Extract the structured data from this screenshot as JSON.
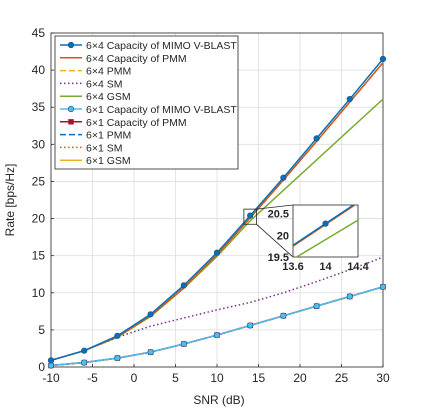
{
  "chart_data": {
    "type": "line",
    "title": "",
    "xlabel": "SNR (dB)",
    "ylabel": "Rate [bps/Hz]",
    "xlim": [
      -10,
      30
    ],
    "ylim": [
      0,
      45
    ],
    "xticks": [
      "-10",
      "-5",
      "0",
      "5",
      "10",
      "15",
      "20",
      "25",
      "30"
    ],
    "yticks": [
      "0",
      "5",
      "10",
      "15",
      "20",
      "25",
      "30",
      "35",
      "40",
      "45"
    ],
    "grid": true,
    "legend_position": "top-left",
    "x": [
      -10,
      -6,
      -2,
      2,
      6,
      10,
      14,
      18,
      22,
      26,
      30
    ],
    "series": [
      {
        "name": "6×4 Capacity of MIMO V-BLAST",
        "color": "#0072BD",
        "dash": "solid",
        "marker": "circle",
        "values": [
          0.9,
          2.2,
          4.2,
          7.1,
          11.0,
          15.4,
          20.4,
          25.5,
          30.8,
          36.1,
          41.5
        ]
      },
      {
        "name": "6×4 Capacity of PMM",
        "color": "#D95319",
        "dash": "solid",
        "marker": "none",
        "values": [
          0.9,
          2.2,
          4.1,
          6.9,
          10.7,
          15.1,
          20.1,
          25.2,
          30.4,
          35.7,
          41.0
        ]
      },
      {
        "name": "6×4 PMM",
        "color": "#EDB120",
        "dash": "dashed",
        "marker": "none",
        "values": [
          0.9,
          2.2,
          4.1,
          6.9,
          10.7,
          15.1,
          20.1,
          25.2,
          30.4,
          35.7,
          41.0
        ]
      },
      {
        "name": "6×4 SM",
        "color": "#7E2F8E",
        "dash": "dotted",
        "marker": "none",
        "values": [
          0.9,
          2.2,
          4.0,
          5.5,
          6.6,
          7.7,
          8.7,
          10.0,
          11.5,
          13.1,
          14.8
        ]
      },
      {
        "name": "6×4 GSM",
        "color": "#77AC30",
        "dash": "solid",
        "marker": "none",
        "values": [
          0.9,
          2.2,
          4.0,
          6.8,
          10.6,
          14.9,
          19.7,
          23.8,
          27.9,
          32.0,
          36.1
        ]
      },
      {
        "name": "6×1 Capacity of MIMO V-BLAST",
        "color": "#4DBEEE",
        "dash": "solid",
        "marker": "circle",
        "values": [
          0.2,
          0.6,
          1.2,
          2.0,
          3.1,
          4.3,
          5.6,
          6.9,
          8.2,
          9.5,
          10.8
        ]
      },
      {
        "name": "6×1 Capacity of PMM",
        "color": "#A2142F",
        "dash": "solid",
        "marker": "square",
        "values": [
          0.2,
          0.6,
          1.2,
          2.0,
          3.1,
          4.3,
          5.6,
          6.9,
          8.2,
          9.5,
          10.8
        ]
      },
      {
        "name": "6×1 PMM",
        "color": "#0072BD",
        "dash": "dashed",
        "marker": "none",
        "values": [
          0.2,
          0.6,
          1.2,
          2.0,
          3.1,
          4.3,
          5.6,
          6.9,
          8.2,
          9.5,
          10.8
        ]
      },
      {
        "name": "6×1 SM",
        "color": "#D95319",
        "dash": "dotted",
        "marker": "none",
        "values": [
          0.2,
          0.6,
          1.2,
          2.0,
          3.1,
          4.3,
          5.6,
          6.9,
          8.2,
          9.5,
          10.8
        ]
      },
      {
        "name": "6×1 GSM",
        "color": "#EDB120",
        "dash": "solid",
        "marker": "none",
        "values": [
          0.2,
          0.6,
          1.2,
          2.0,
          3.1,
          4.3,
          5.6,
          6.9,
          8.2,
          9.5,
          10.8
        ]
      }
    ],
    "inset": {
      "xlim": [
        13.6,
        14.4
      ],
      "ylim": [
        19.5,
        20.7
      ],
      "xticks": [
        "13.6",
        "14",
        "14.4"
      ],
      "yticks": [
        "19.5",
        "20",
        "20.5"
      ],
      "zoom_region": {
        "x": [
          13.6,
          14.4
        ],
        "y": [
          19.5,
          21.0
        ]
      }
    }
  }
}
